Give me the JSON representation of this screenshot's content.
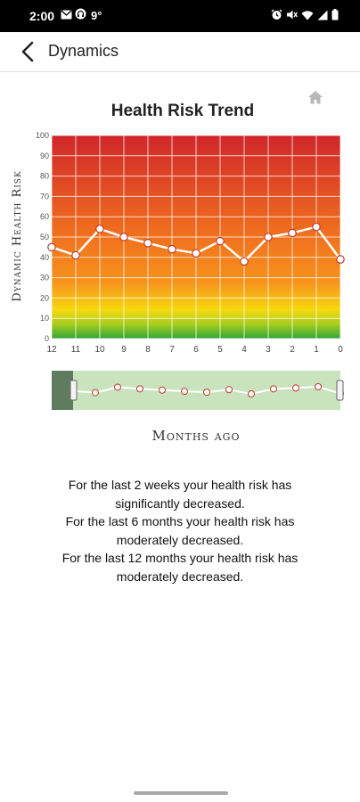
{
  "status_bar": {
    "time": "2:00",
    "temperature": "9°",
    "left_icons": [
      "mail-icon",
      "headphones-icon"
    ],
    "right_icons": [
      "alarm-icon",
      "mute-icon",
      "wifi-icon",
      "signal-icon",
      "battery-icon"
    ]
  },
  "app_bar": {
    "back_icon": "chevron-left-icon",
    "title": "Dynamics"
  },
  "chart": {
    "home_icon": "home-icon",
    "navigator_accent": "#5b7c5e",
    "navigator_bg": "#c7e3b9"
  },
  "chart_data": {
    "type": "line",
    "title": "Health Risk Trend",
    "xlabel": "Months ago",
    "ylabel": "Dynamic Health Risk",
    "x": [
      "12",
      "11",
      "10",
      "9",
      "8",
      "7",
      "6",
      "5",
      "4",
      "3",
      "2",
      "1",
      "0"
    ],
    "series": [
      {
        "values": [
          45,
          41,
          54,
          50,
          47,
          44,
          42,
          48,
          38,
          50,
          52,
          55,
          39
        ]
      }
    ],
    "ylim": [
      0,
      100
    ],
    "yticks": [
      0,
      10,
      20,
      30,
      40,
      50,
      60,
      70,
      80,
      90,
      100
    ],
    "grid": true,
    "background_gradient": [
      "#d32f2f",
      "#f57c00",
      "#fbe000",
      "#2e9e2e"
    ],
    "navigator_values": [
      45,
      41,
      54,
      50,
      47,
      44,
      42,
      48,
      38,
      50,
      52,
      55,
      39
    ]
  },
  "summary": {
    "line1": "For the last 2 weeks your health risk has",
    "line2": "significantly decreased.",
    "line3": "For the last 6 months your health risk has",
    "line4": "moderately decreased.",
    "line5": "For the last 12 months your health risk has",
    "line6": "moderately decreased."
  }
}
